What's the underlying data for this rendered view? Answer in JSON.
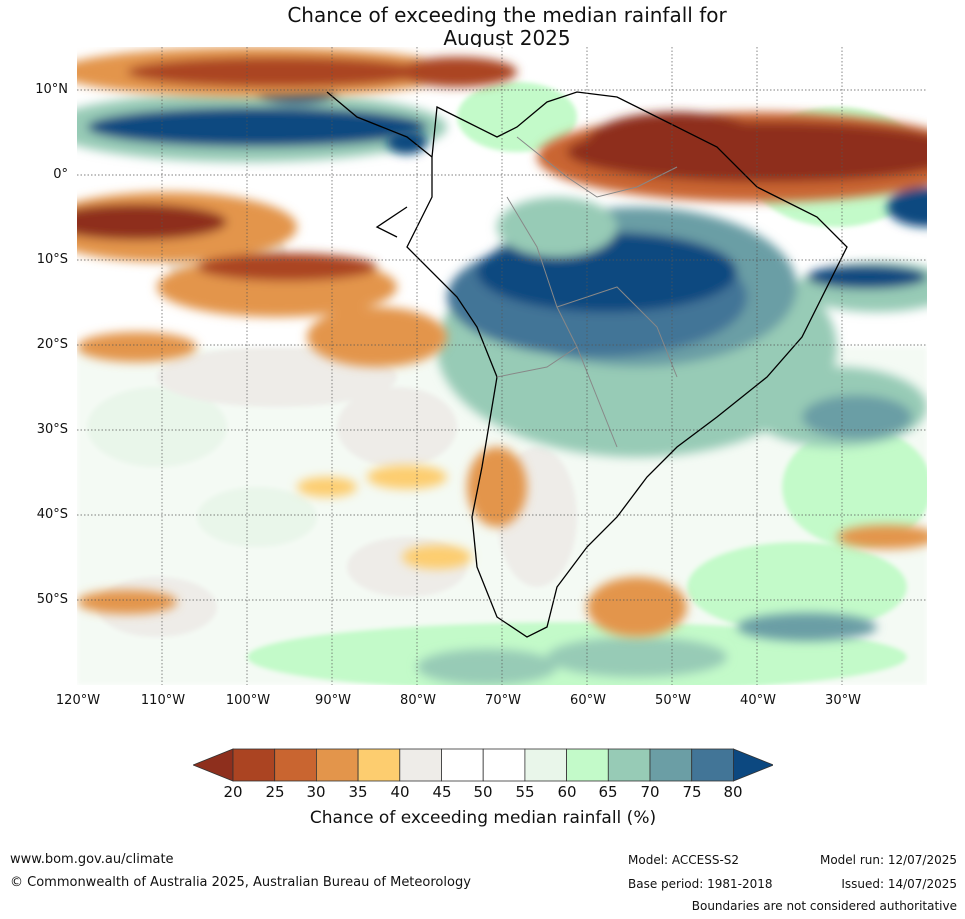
{
  "title_line1": "Chance of exceeding the median rainfall for",
  "title_line2": "August 2025",
  "map": {
    "lat_ticks": [
      "10°N",
      "0°",
      "10°S",
      "20°S",
      "30°S",
      "40°S",
      "50°S"
    ],
    "lon_ticks": [
      "120°W",
      "110°W",
      "100°W",
      "90°W",
      "80°W",
      "70°W",
      "60°W",
      "50°W",
      "40°W",
      "30°W"
    ],
    "lon_range": [
      -120,
      -20
    ],
    "lat_range": [
      -60,
      15
    ]
  },
  "colorbar": {
    "labels": [
      "20",
      "25",
      "30",
      "35",
      "40",
      "45",
      "50",
      "55",
      "60",
      "65",
      "70",
      "75",
      "80"
    ],
    "colors": [
      "#8e2f1d",
      "#ab4422",
      "#c96530",
      "#e3954b",
      "#fdcd6f",
      "#eeece8",
      "#ffffff",
      "#ffffff",
      "#e9f6ea",
      "#c3fac9",
      "#97cbb6",
      "#6b9ea5",
      "#427597",
      "#0c4880"
    ],
    "title": "Chance of exceeding median rainfall (%)"
  },
  "footer": {
    "website": "www.bom.gov.au/climate",
    "copyright": "© Commonwealth of Australia 2025, Australian Bureau of Meteorology",
    "model": "Model: ACCESS-S2",
    "base_period": "Base period: 1981-2018",
    "model_run": "Model run: 12/07/2025",
    "issued": "Issued: 14/07/2025",
    "disclaimer": "Boundaries are not considered authoritative"
  }
}
